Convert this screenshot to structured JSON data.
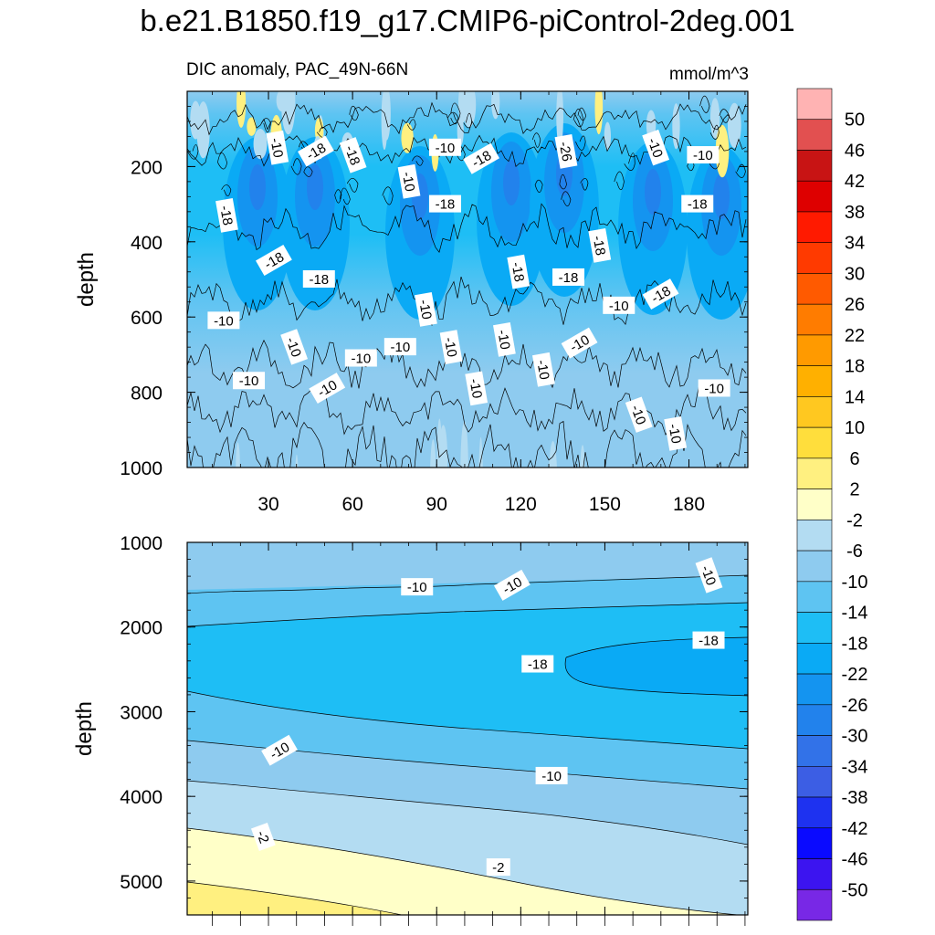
{
  "figure": {
    "title": "b.e21.B1850.f19_g17.CMIP6-piControl-2deg.001",
    "subtitle_left": "DIC anomaly, PAC_49N-66N",
    "units": "mmol/m^3"
  },
  "chart_data": {
    "type": "heatmap",
    "variable": "DIC anomaly",
    "units": "mmol/m^3",
    "colorbar": {
      "levels": [
        50,
        46,
        42,
        38,
        34,
        30,
        26,
        22,
        18,
        14,
        10,
        6,
        2,
        -2,
        -6,
        -10,
        -14,
        -18,
        -22,
        -26,
        -30,
        -34,
        -38,
        -42,
        -46,
        -50
      ],
      "colors": [
        "#ffb3b3",
        "#e25050",
        "#c81414",
        "#de0000",
        "#ff1a00",
        "#ff3a00",
        "#ff5a00",
        "#ff7c00",
        "#ff9a00",
        "#ffb000",
        "#ffc820",
        "#ffde3c",
        "#fff080",
        "#ffffc8",
        "#b3dcf2",
        "#8ecbef",
        "#5ec4f2",
        "#1ebef5",
        "#0aaaf5",
        "#1494f0",
        "#2282ec",
        "#3272e8",
        "#3c5ee4",
        "#1e32f0",
        "#0a0aff",
        "#3c14f0",
        "#7828e6"
      ]
    },
    "panels": [
      {
        "name": "upper",
        "ylabel": "depth",
        "ylim": [
          0,
          1000
        ],
        "y_inverted": true,
        "y_ticks": [
          200,
          400,
          600,
          800,
          1000
        ],
        "xlim": [
          1,
          201
        ],
        "x_ticks": [
          30,
          60,
          90,
          120,
          150,
          180
        ],
        "contour_labels": [
          {
            "x": 33,
            "depth": 150,
            "text": "-10"
          },
          {
            "x": 47,
            "depth": 160,
            "text": "-18"
          },
          {
            "x": 60,
            "depth": 170,
            "text": "-18"
          },
          {
            "x": 80,
            "depth": 240,
            "text": "-10"
          },
          {
            "x": 93,
            "depth": 150,
            "text": "-10"
          },
          {
            "x": 106,
            "depth": 180,
            "text": "-18"
          },
          {
            "x": 136,
            "depth": 160,
            "text": "-26"
          },
          {
            "x": 168,
            "depth": 150,
            "text": "-10"
          },
          {
            "x": 185,
            "depth": 170,
            "text": "-10"
          },
          {
            "x": 15,
            "depth": 330,
            "text": "-18"
          },
          {
            "x": 93,
            "depth": 300,
            "text": "-18"
          },
          {
            "x": 183,
            "depth": 300,
            "text": "-18"
          },
          {
            "x": 148,
            "depth": 410,
            "text": "-18"
          },
          {
            "x": 32,
            "depth": 450,
            "text": "-18"
          },
          {
            "x": 48,
            "depth": 500,
            "text": "-18"
          },
          {
            "x": 119,
            "depth": 480,
            "text": "-18"
          },
          {
            "x": 137,
            "depth": 495,
            "text": "-18"
          },
          {
            "x": 170,
            "depth": 540,
            "text": "-18"
          },
          {
            "x": 86,
            "depth": 580,
            "text": "-10"
          },
          {
            "x": 155,
            "depth": 570,
            "text": "-10"
          },
          {
            "x": 14,
            "depth": 610,
            "text": "-10"
          },
          {
            "x": 114,
            "depth": 660,
            "text": "-10"
          },
          {
            "x": 39,
            "depth": 680,
            "text": "-10"
          },
          {
            "x": 77,
            "depth": 680,
            "text": "-10"
          },
          {
            "x": 95,
            "depth": 680,
            "text": "-10"
          },
          {
            "x": 141,
            "depth": 670,
            "text": "-10"
          },
          {
            "x": 63,
            "depth": 710,
            "text": "-10"
          },
          {
            "x": 128,
            "depth": 740,
            "text": "-10"
          },
          {
            "x": 23,
            "depth": 770,
            "text": "-10"
          },
          {
            "x": 51,
            "depth": 790,
            "text": "-10"
          },
          {
            "x": 104,
            "depth": 790,
            "text": "-10"
          },
          {
            "x": 189,
            "depth": 790,
            "text": "-10"
          },
          {
            "x": 162,
            "depth": 860,
            "text": "-10"
          },
          {
            "x": 175,
            "depth": 910,
            "text": "-10"
          }
        ]
      },
      {
        "name": "lower",
        "ylabel": "depth",
        "ylim": [
          1000,
          5400
        ],
        "y_inverted": true,
        "y_ticks": [
          1000,
          2000,
          3000,
          4000,
          5000
        ],
        "xlim": [
          1,
          201
        ],
        "x_ticks": [
          30,
          60,
          90,
          120,
          150,
          180
        ],
        "contour_labels": [
          {
            "x": 83,
            "depth": 1530,
            "text": "-10"
          },
          {
            "x": 117,
            "depth": 1510,
            "text": "-10"
          },
          {
            "x": 187,
            "depth": 1390,
            "text": "-10"
          },
          {
            "x": 187,
            "depth": 2160,
            "text": "-18"
          },
          {
            "x": 126,
            "depth": 2440,
            "text": "-18"
          },
          {
            "x": 34,
            "depth": 3460,
            "text": "-10"
          },
          {
            "x": 131,
            "depth": 3760,
            "text": "-10"
          },
          {
            "x": 28,
            "depth": 4480,
            "text": "-2"
          },
          {
            "x": 112,
            "depth": 4840,
            "text": "-2"
          }
        ]
      }
    ]
  }
}
